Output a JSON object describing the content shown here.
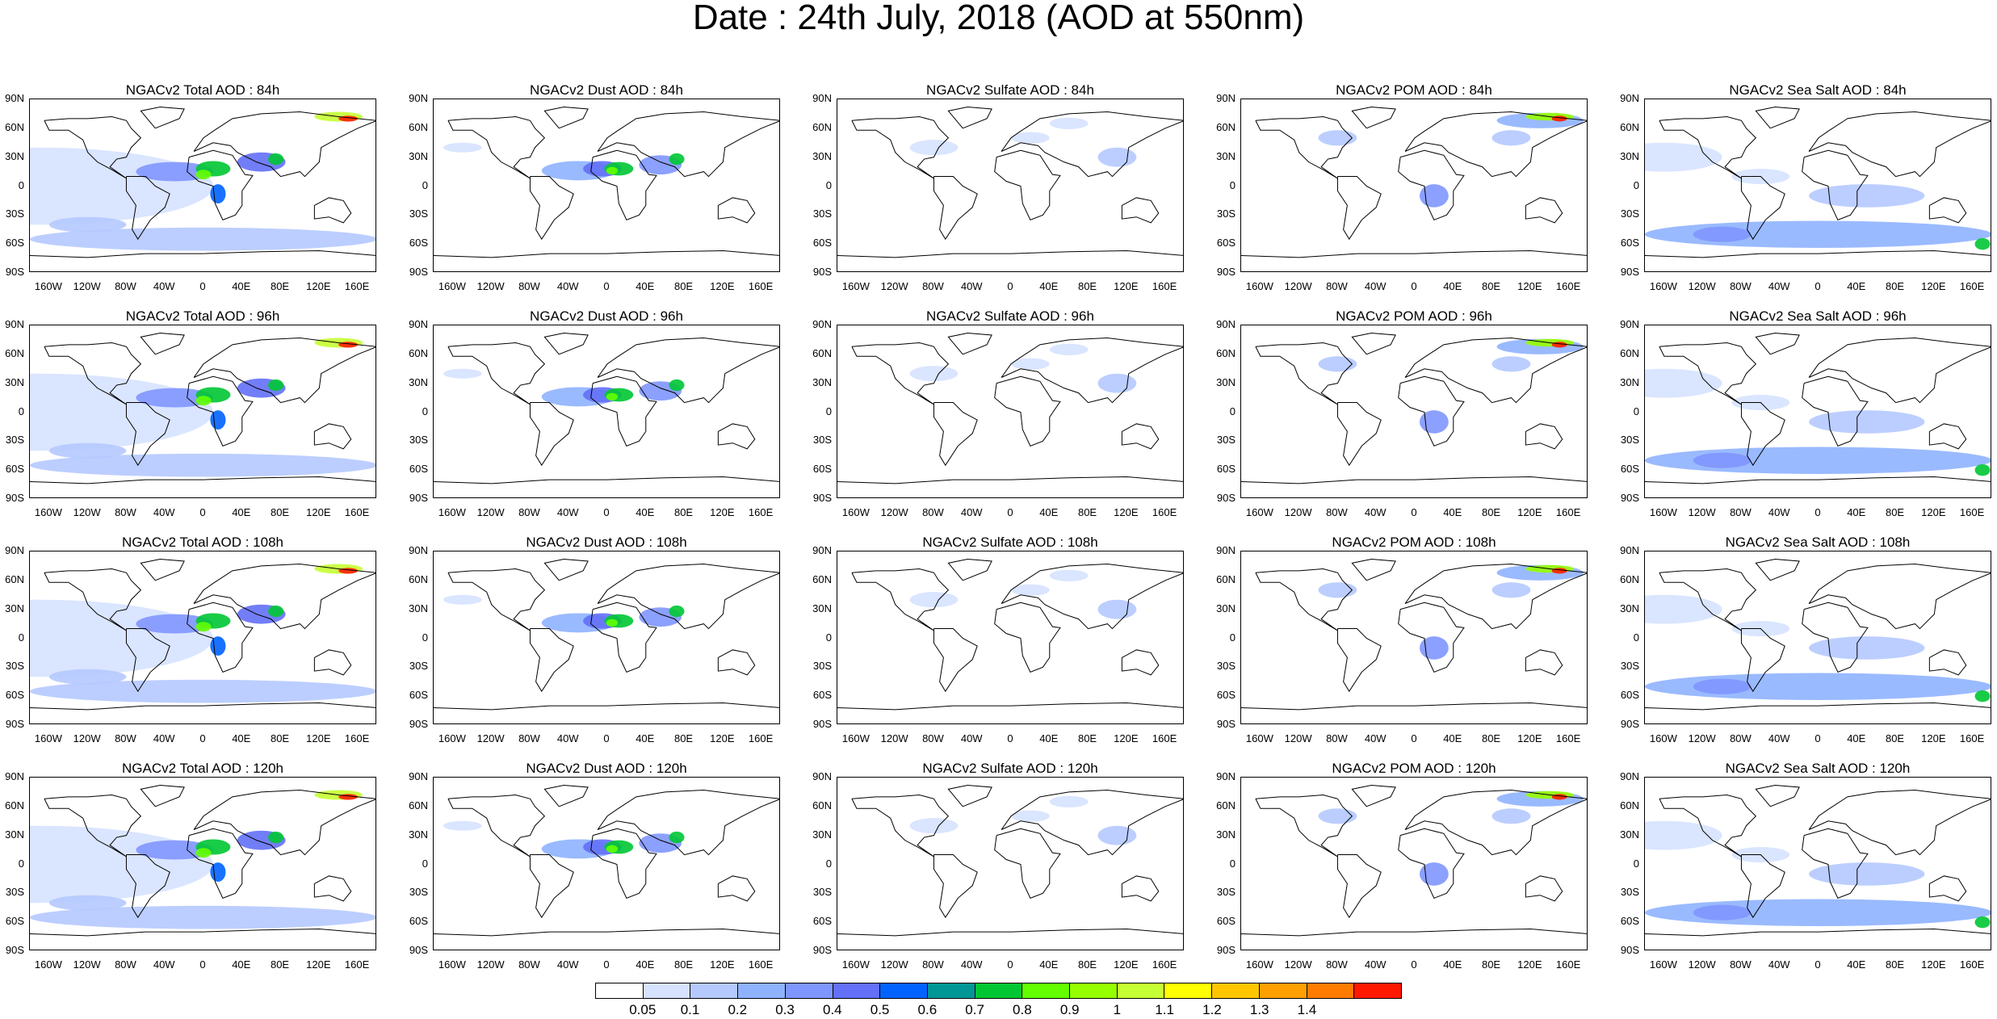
{
  "title": "Date : 24th July, 2018 (AOD at 550nm)",
  "axis_labels": {
    "lat": [
      "90N",
      "60N",
      "30N",
      "0",
      "30S",
      "60S",
      "90S"
    ],
    "lon": [
      "160W",
      "120W",
      "80W",
      "40W",
      "0",
      "40E",
      "80E",
      "120E",
      "160E"
    ]
  },
  "species": [
    "Total",
    "Dust",
    "Sulfate",
    "POM",
    "Sea Salt"
  ],
  "panel_titles": [
    [
      "NGACv2 Total AOD : 84h",
      "NGACv2 Dust AOD : 84h",
      "NGACv2 Sulfate AOD : 84h",
      "NGACv2 POM AOD : 84h",
      "NGACv2 Sea Salt AOD : 84h"
    ],
    [
      "NGACv2 Total AOD : 96h",
      "NGACv2 Dust AOD : 96h",
      "NGACv2 Sulfate AOD : 96h",
      "NGACv2 POM AOD : 96h",
      "NGACv2 Sea Salt AOD : 96h"
    ],
    [
      "NGACv2 Total AOD : 108h",
      "NGACv2 Dust AOD : 108h",
      "NGACv2 Sulfate AOD : 108h",
      "NGACv2 POM AOD : 108h",
      "NGACv2 Sea Salt AOD : 108h"
    ],
    [
      "NGACv2 Total AOD : 120h",
      "NGACv2 Dust AOD : 120h",
      "NGACv2 Sulfate AOD : 120h",
      "NGACv2 POM AOD : 120h",
      "NGACv2 Sea Salt  AOD : 120h"
    ]
  ],
  "colorbar": {
    "labels": [
      "0.05",
      "0.1",
      "0.2",
      "0.3",
      "0.4",
      "0.5",
      "0.6",
      "0.7",
      "0.8",
      "0.9",
      "1",
      "1.1",
      "1.2",
      "1.3",
      "1.4"
    ],
    "colors": [
      "#ffffff",
      "#d6e2ff",
      "#b5c9ff",
      "#8fb2ff",
      "#7f96ff",
      "#6370f7",
      "#0063ff",
      "#009696",
      "#00c633",
      "#63ff00",
      "#96ff00",
      "#c6ff33",
      "#ffff00",
      "#ffc600",
      "#ffa000",
      "#ff7c00",
      "#ff1900"
    ]
  }
}
